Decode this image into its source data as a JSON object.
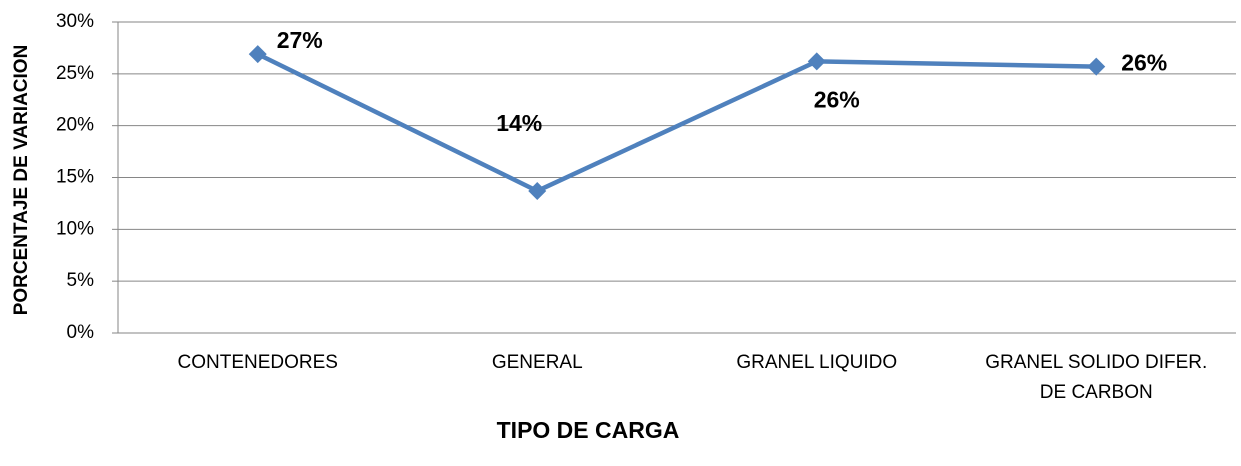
{
  "chart_data": {
    "type": "line",
    "x_label": "TIPO DE CARGA",
    "y_label": "PORCENTAJE DE VARIACION",
    "categories": [
      "CONTENEDORES",
      "GENERAL",
      "GRANEL LIQUIDO",
      "GRANEL SOLIDO DIFER. DE CARBON"
    ],
    "series": [
      {
        "color": "#4f81bd",
        "values": [
          26.9,
          13.7,
          26.2,
          25.7
        ],
        "value_labels": [
          "27%",
          "14%",
          "26%",
          "26%"
        ]
      }
    ],
    "ylim": [
      0,
      30
    ],
    "yticks": [
      {
        "value": 0,
        "label": "0%"
      },
      {
        "value": 5,
        "label": "5%"
      },
      {
        "value": 10,
        "label": "10%"
      },
      {
        "value": 15,
        "label": "15%"
      },
      {
        "value": 20,
        "label": "20%"
      },
      {
        "value": 25,
        "label": "25%"
      },
      {
        "value": 30,
        "label": "30%"
      }
    ],
    "grid": true
  }
}
